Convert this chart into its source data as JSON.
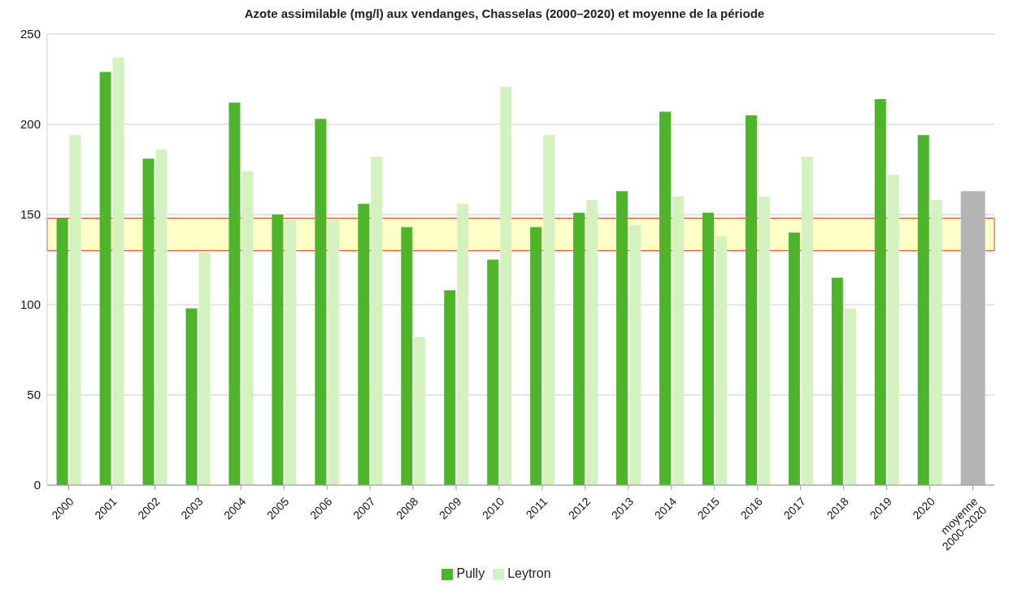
{
  "chart_data": {
    "type": "bar",
    "title": "Azote assimilable (mg/l) aux vendanges, Chasselas (2000–2020) et moyenne de la période",
    "categories": [
      "2000",
      "2001",
      "2002",
      "2003",
      "2004",
      "2005",
      "2006",
      "2007",
      "2008",
      "2009",
      "2010",
      "2011",
      "2012",
      "2013",
      "2014",
      "2015",
      "2016",
      "2017",
      "2018",
      "2019",
      "2020",
      "moyenne 2000–2020"
    ],
    "series": [
      {
        "name": "Pully",
        "color": "#4cb52a",
        "values": [
          148,
          229,
          181,
          98,
          212,
          150,
          203,
          156,
          143,
          108,
          125,
          143,
          151,
          163,
          207,
          151,
          205,
          140,
          115,
          214,
          194,
          null
        ]
      },
      {
        "name": "Leytron",
        "color": "#d4f2c0",
        "values": [
          194,
          237,
          186,
          129,
          174,
          147,
          147,
          182,
          82,
          156,
          221,
          194,
          158,
          144,
          160,
          138,
          160,
          182,
          98,
          172,
          158,
          null
        ]
      },
      {
        "color": "#b4b4b4",
        "values": [
          null,
          null,
          null,
          null,
          null,
          null,
          null,
          null,
          null,
          null,
          null,
          null,
          null,
          null,
          null,
          null,
          null,
          null,
          null,
          null,
          null,
          163
        ]
      }
    ],
    "ylim": [
      0,
      250
    ],
    "yticks": [
      0,
      50,
      100,
      150,
      200,
      250
    ],
    "grid": "y",
    "legend": "bottom",
    "bands": [
      {
        "axis": "y",
        "from": 130,
        "to": 148,
        "color": "#ffff99"
      }
    ]
  }
}
